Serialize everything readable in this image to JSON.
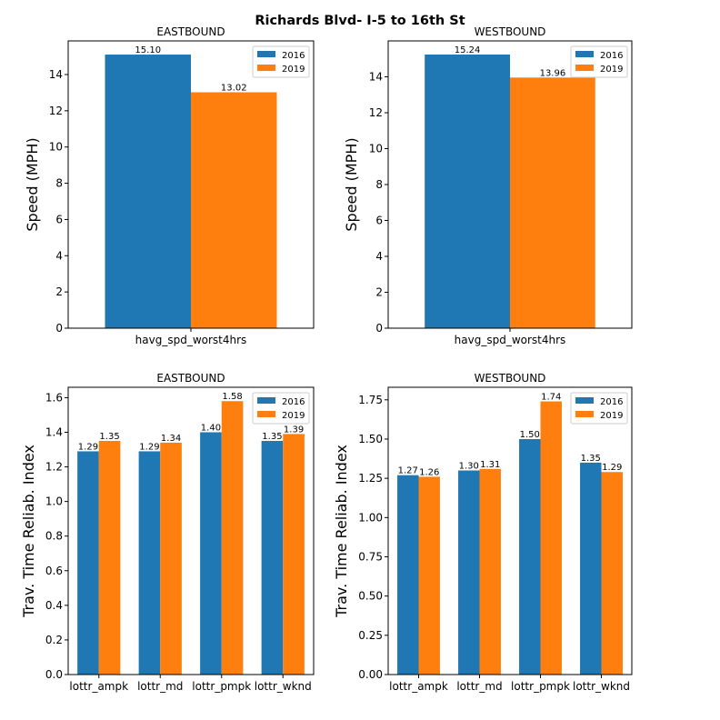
{
  "suptitle": "Richards Blvd- I-5 to 16th St",
  "colors": {
    "2016": "#1f77b4",
    "2019": "#ff7f0e"
  },
  "chart_data": [
    {
      "type": "bar",
      "title": "EASTBOUND",
      "xlabel": "",
      "ylabel": "Speed (MPH)",
      "categories": [
        "havg_spd_worst4hrs"
      ],
      "series": [
        {
          "name": "2016",
          "values": [
            15.1
          ],
          "labels": [
            "15.10"
          ]
        },
        {
          "name": "2019",
          "values": [
            13.02
          ],
          "labels": [
            "13.02"
          ]
        }
      ],
      "ylim": [
        0,
        15.855
      ],
      "yticks": [
        0,
        2,
        4,
        6,
        8,
        10,
        12,
        14
      ],
      "ytick_labels": [
        "0",
        "2",
        "4",
        "6",
        "8",
        "10",
        "12",
        "14"
      ],
      "legend": "top-right",
      "grid": false
    },
    {
      "type": "bar",
      "title": "WESTBOUND",
      "xlabel": "",
      "ylabel": "Speed (MPH)",
      "categories": [
        "havg_spd_worst4hrs"
      ],
      "series": [
        {
          "name": "2016",
          "values": [
            15.24
          ],
          "labels": [
            "15.24"
          ]
        },
        {
          "name": "2019",
          "values": [
            13.96
          ],
          "labels": [
            "13.96"
          ]
        }
      ],
      "ylim": [
        0,
        16.0
      ],
      "yticks": [
        0,
        2,
        4,
        6,
        8,
        10,
        12,
        14
      ],
      "ytick_labels": [
        "0",
        "2",
        "4",
        "6",
        "8",
        "10",
        "12",
        "14"
      ],
      "legend": "top-right",
      "grid": false
    },
    {
      "type": "bar",
      "title": "EASTBOUND",
      "xlabel": "",
      "ylabel": "Trav. Time Reliab. Index",
      "categories": [
        "lottr_ampk",
        "lottr_md",
        "lottr_pmpk",
        "lottr_wknd"
      ],
      "series": [
        {
          "name": "2016",
          "values": [
            1.29,
            1.29,
            1.4,
            1.35
          ],
          "labels": [
            "1.29",
            "1.29",
            "1.40",
            "1.35"
          ]
        },
        {
          "name": "2019",
          "values": [
            1.35,
            1.34,
            1.58,
            1.39
          ],
          "labels": [
            "1.35",
            "1.34",
            "1.58",
            "1.39"
          ]
        }
      ],
      "ylim": [
        0,
        1.66
      ],
      "yticks": [
        0,
        0.2,
        0.4,
        0.6,
        0.8,
        1.0,
        1.2,
        1.4,
        1.6
      ],
      "ytick_labels": [
        "0.0",
        "0.2",
        "0.4",
        "0.6",
        "0.8",
        "1.0",
        "1.2",
        "1.4",
        "1.6"
      ],
      "legend": "top-right",
      "grid": false
    },
    {
      "type": "bar",
      "title": "WESTBOUND",
      "xlabel": "",
      "ylabel": "Trav. Time Reliab. Index",
      "categories": [
        "lottr_ampk",
        "lottr_md",
        "lottr_pmpk",
        "lottr_wknd"
      ],
      "series": [
        {
          "name": "2016",
          "values": [
            1.27,
            1.3,
            1.5,
            1.35
          ],
          "labels": [
            "1.27",
            "1.30",
            "1.50",
            "1.35"
          ]
        },
        {
          "name": "2019",
          "values": [
            1.26,
            1.31,
            1.74,
            1.29
          ],
          "labels": [
            "1.26",
            "1.31",
            "1.74",
            "1.29"
          ]
        }
      ],
      "ylim": [
        0,
        1.83
      ],
      "yticks": [
        0,
        0.25,
        0.5,
        0.75,
        1.0,
        1.25,
        1.5,
        1.75
      ],
      "ytick_labels": [
        "0.00",
        "0.25",
        "0.50",
        "0.75",
        "1.00",
        "1.25",
        "1.50",
        "1.75"
      ],
      "legend": "top-right",
      "grid": false
    }
  ]
}
